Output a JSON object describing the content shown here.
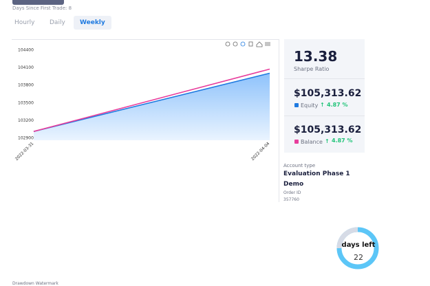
{
  "header": {
    "days_since": "Days Since First Trade: 8"
  },
  "tabs": [
    "Hourly",
    "Daily",
    "Weekly"
  ],
  "chart_data": {
    "type": "line",
    "categories": [
      "2022-03-31",
      "2022-04-04"
    ],
    "series": [
      {
        "name": "Equity",
        "color": "#1f7ae0",
        "values": [
          103010,
          104000
        ],
        "area": true
      },
      {
        "name": "Balance",
        "color": "#e83e9c",
        "values": [
          103010,
          104070
        ]
      }
    ],
    "ylim": [
      102860,
      104520
    ],
    "yticks": [
      102900,
      103200,
      103500,
      103800,
      104100,
      104400
    ],
    "grid": false
  },
  "stats": {
    "sharpe": "13.38",
    "sharpe_label": "Sharpe Ratio",
    "equity": "$105,313.62",
    "equity_label": "Equity",
    "equity_change": "4.87 %",
    "balance": "$105,313.62",
    "balance_label": "Balance",
    "balance_change": "4.87 %"
  },
  "account": {
    "type_label": "Account type",
    "type": "Evaluation Phase 1",
    "mode": "Demo",
    "order_label": "Order ID",
    "order": "357760"
  },
  "days_left": {
    "label": "days left",
    "value": "22"
  },
  "footer": {
    "drawdown": "Drawdown Watermark"
  }
}
